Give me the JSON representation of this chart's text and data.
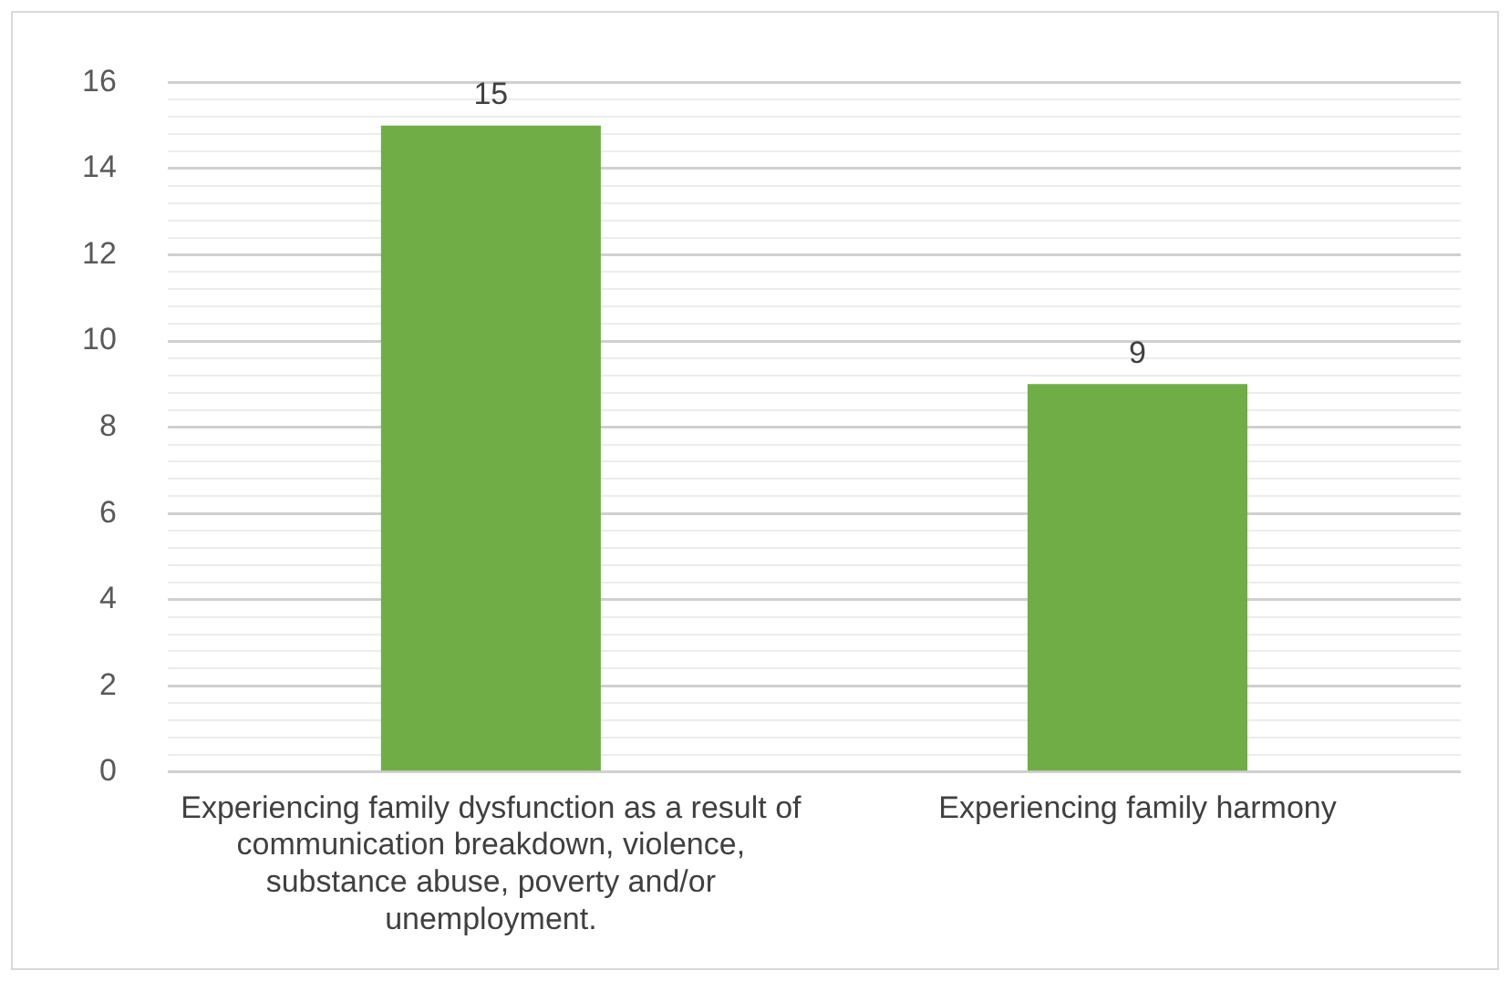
{
  "chart_data": {
    "type": "bar",
    "categories": [
      "Experiencing family dysfunction as a result of communication breakdown, violence, substance abuse, poverty and/or unemployment.",
      "Experiencing family harmony"
    ],
    "values": [
      15,
      9
    ],
    "color": "#70ad47",
    "ylim": [
      0,
      16
    ],
    "yticks": [
      0,
      {
        "value": 0.4,
        "label": null
      },
      {
        "value": 0.8,
        "label": null
      },
      {
        "value": 1.2,
        "label": null
      },
      {
        "value": 1.6,
        "label": null
      },
      2,
      {
        "value": 2.4,
        "label": null
      },
      {
        "value": 2.8,
        "label": null
      },
      {
        "value": 3.2,
        "label": null
      },
      {
        "value": 3.6,
        "label": null
      },
      4,
      {
        "value": 4.4,
        "label": null
      },
      {
        "value": 4.8,
        "label": null
      },
      {
        "value": 5.2,
        "label": null
      },
      {
        "value": 5.6,
        "label": null
      },
      6,
      {
        "value": 6.4,
        "label": null
      },
      {
        "value": 6.8,
        "label": null
      },
      {
        "value": 7.2,
        "label": null
      },
      {
        "value": 7.6,
        "label": null
      },
      8,
      {
        "value": 8.4,
        "label": null
      },
      {
        "value": 8.8,
        "label": null
      },
      {
        "value": 9.2,
        "label": null
      },
      {
        "value": 9.6,
        "label": null
      },
      10,
      {
        "value": 10.4,
        "label": null
      },
      {
        "value": 10.8,
        "label": null
      },
      {
        "value": 11.2,
        "label": null
      },
      {
        "value": 11.6,
        "label": null
      },
      12,
      {
        "value": 12.4,
        "label": null
      },
      {
        "value": 12.8,
        "label": null
      },
      {
        "value": 13.2,
        "label": null
      },
      {
        "value": 13.6,
        "label": null
      },
      14,
      {
        "value": 14.4,
        "label": null
      },
      {
        "value": 14.8,
        "label": null
      },
      {
        "value": 15.2,
        "label": null
      },
      {
        "value": 15.6,
        "label": null
      },
      16
    ],
    "grid": "y",
    "data_labels": true,
    "legend": false
  }
}
